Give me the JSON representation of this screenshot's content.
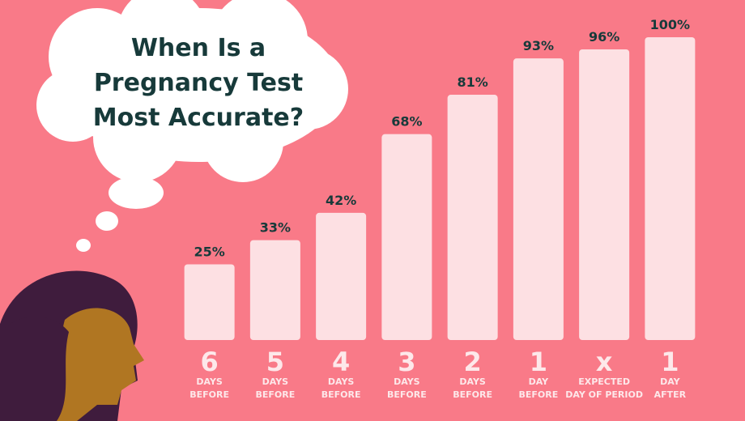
{
  "chart_data": {
    "type": "bar",
    "title": "When Is a Pregnancy Test Most Accurate?",
    "categories": [
      "6",
      "5",
      "4",
      "3",
      "2",
      "1",
      "x",
      "1"
    ],
    "category_notes": [
      [
        "DAYS",
        "BEFORE"
      ],
      [
        "DAYS",
        "BEFORE"
      ],
      [
        "DAYS",
        "BEFORE"
      ],
      [
        "DAYS",
        "BEFORE"
      ],
      [
        "DAYS",
        "BEFORE"
      ],
      [
        "DAY",
        "BEFORE"
      ],
      [
        "EXPECTED",
        "DAY OF PERIOD"
      ],
      [
        "DAY",
        "AFTER"
      ]
    ],
    "values": [
      25,
      33,
      42,
      68,
      81,
      93,
      96,
      100
    ],
    "value_labels": [
      "25%",
      "33%",
      "42%",
      "68%",
      "81%",
      "93%",
      "96%",
      "100%"
    ],
    "color": "#fde0e3"
  }
}
